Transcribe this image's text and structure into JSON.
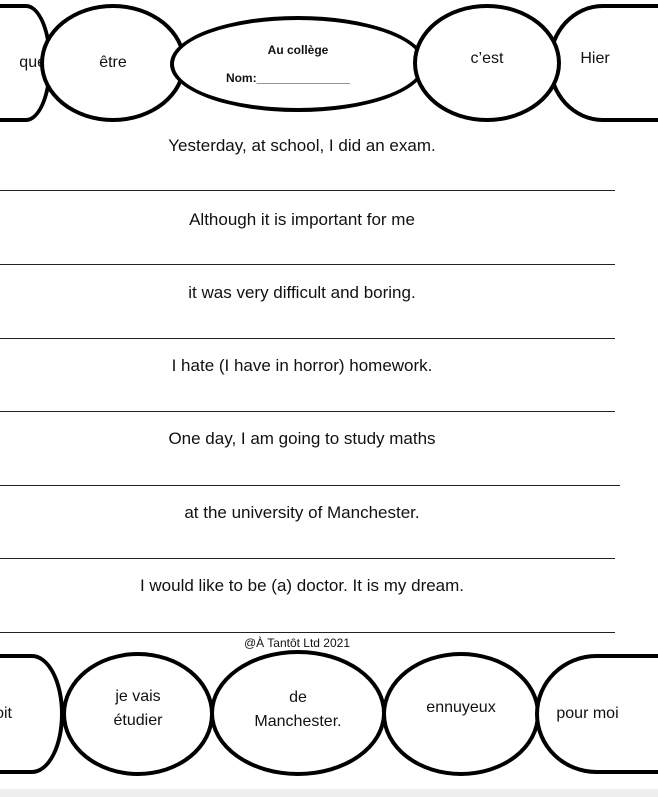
{
  "top_bubbles": {
    "left_partial": "que",
    "b1": "être",
    "title": "Au collège",
    "name_label": "Nom:______________",
    "b3": "c’est",
    "b4": "Hier"
  },
  "sentences": [
    "Yesterday, at school, I did an exam.",
    "Although it is important for me",
    "it was very difficult and boring.",
    "I hate (I have in horror) homework.",
    "One day, I am going to study maths",
    "at the university of Manchester.",
    "I would like to be (a) doctor. It is my dream."
  ],
  "copyright": "@À Tantôt Ltd 2021",
  "bottom_bubbles": {
    "left_partial": "oit",
    "b1_l1": "je vais",
    "b1_l2": "étudier",
    "b2_l1": "de",
    "b2_l2": "Manchester.",
    "b3": "ennuyeux",
    "b4": "pour moi"
  }
}
